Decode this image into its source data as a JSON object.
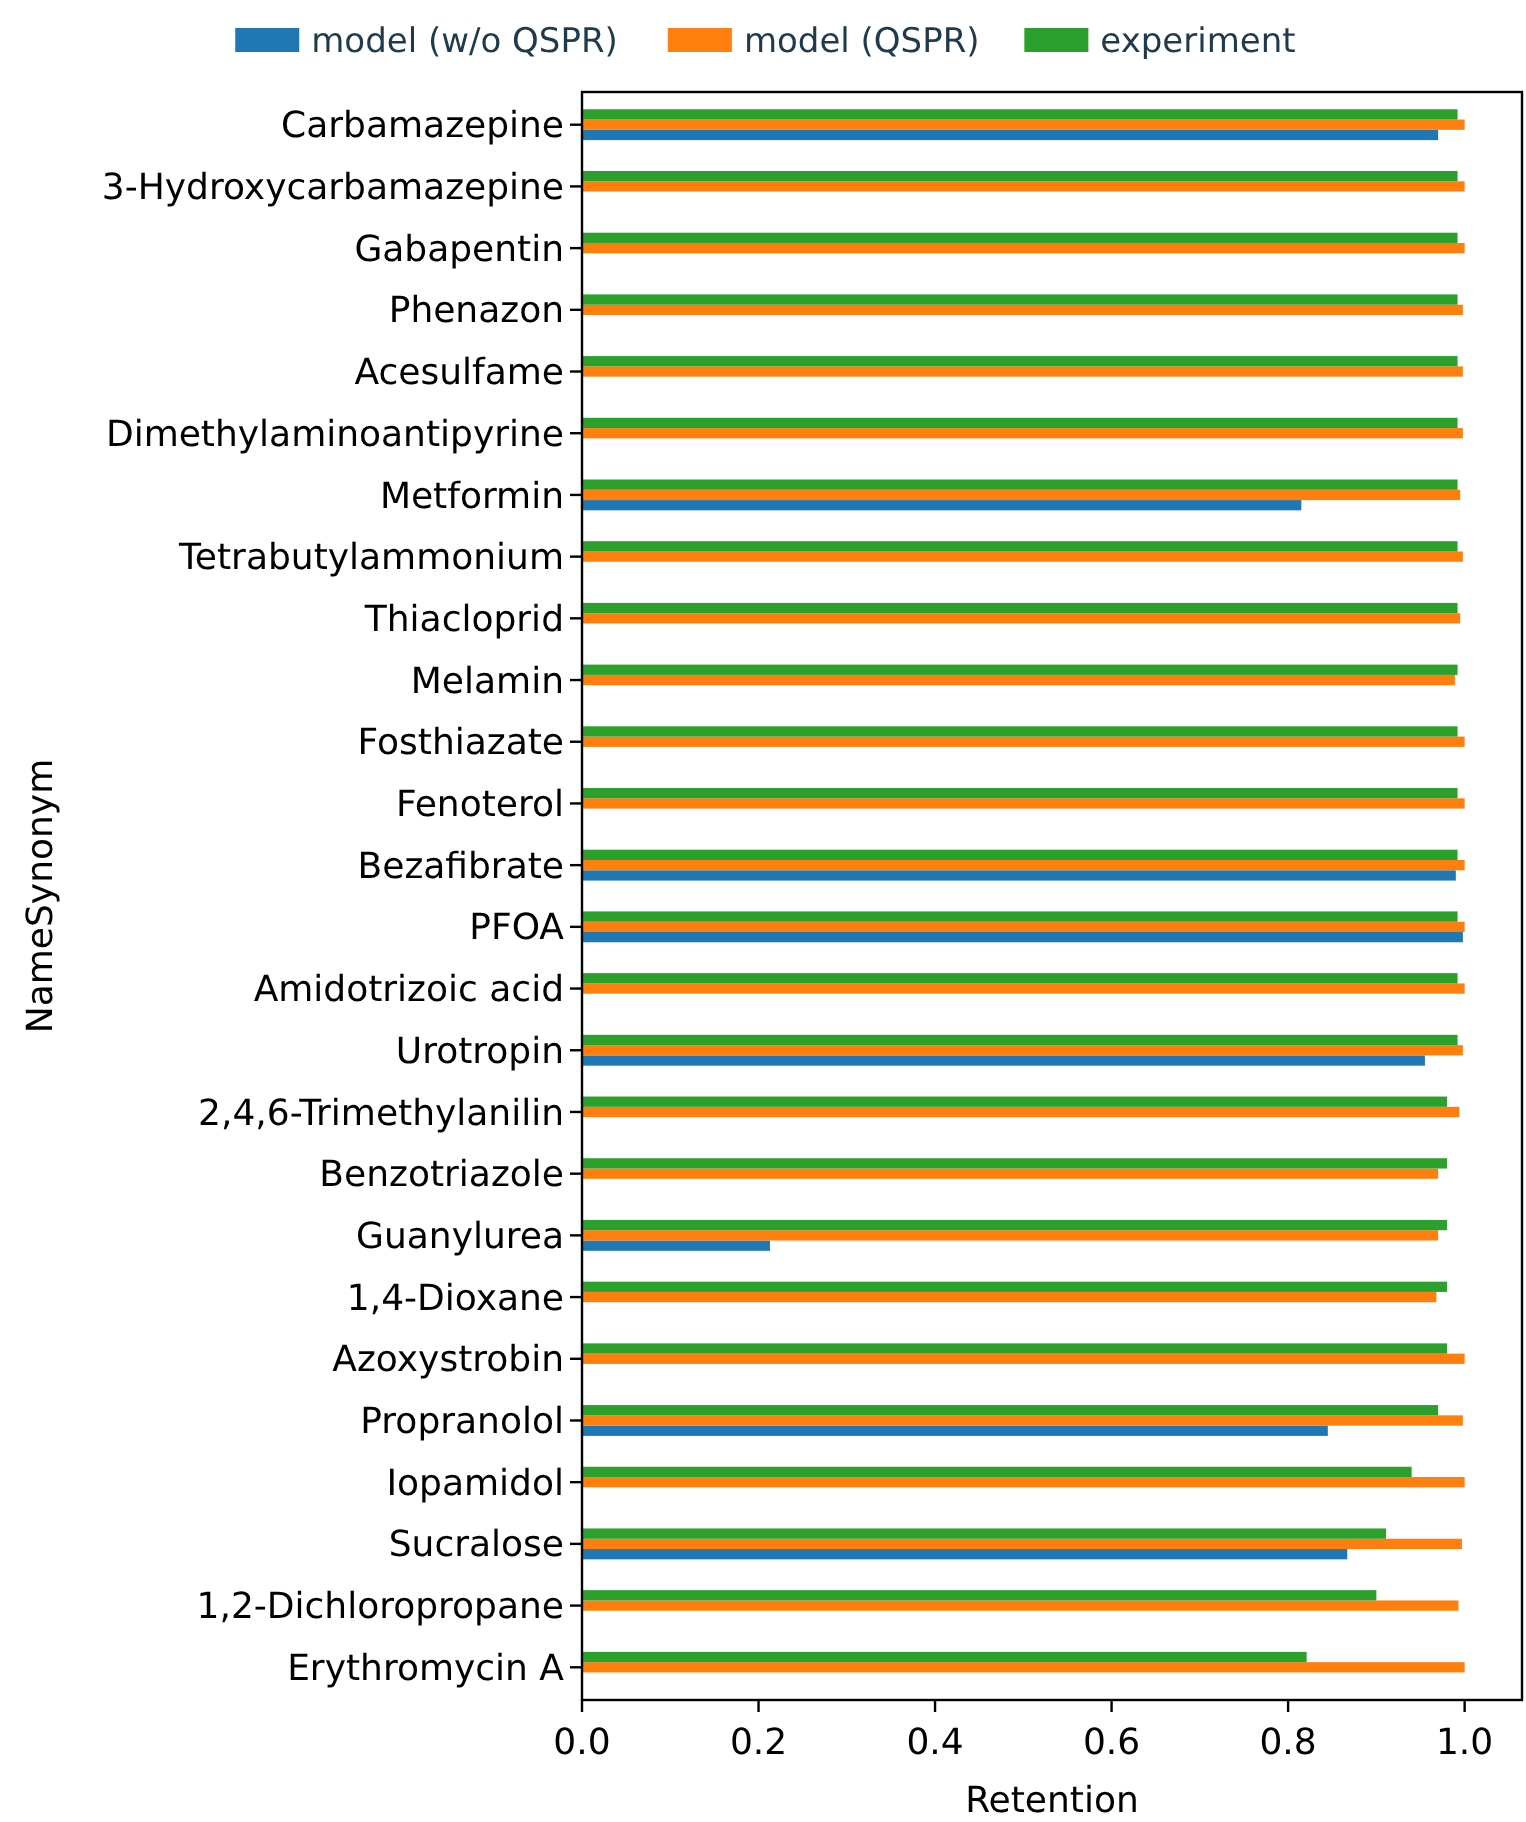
{
  "chart_data": {
    "type": "bar",
    "orientation": "horizontal",
    "xlabel": "Retention",
    "ylabel": "NameSynonym",
    "categories": [
      "Carbamazepine",
      "3-Hydroxycarbamazepine",
      "Gabapentin",
      "Phenazon",
      "Acesulfame",
      "Dimethylaminoantipyrine",
      "Metformin",
      "Tetrabutylammonium",
      "Thiacloprid",
      "Melamin",
      "Fosthiazate",
      "Fenoterol",
      "Bezafibrate",
      "PFOA",
      "Amidotrizoic acid",
      "Urotropin",
      "2,4,6-Trimethylanilin",
      "Benzotriazole",
      "Guanylurea",
      "1,4-Dioxane",
      "Azoxystrobin",
      "Propranolol",
      "Iopamidol",
      "Sucralose",
      "1,2-Dichloropropane",
      "Erythromycin A"
    ],
    "series": [
      {
        "name": "model (w/o QSPR)",
        "color": "#1f77b4",
        "values": [
          0.97,
          null,
          null,
          null,
          null,
          null,
          0.815,
          null,
          null,
          null,
          null,
          null,
          0.99,
          0.998,
          null,
          0.955,
          null,
          null,
          0.213,
          null,
          null,
          0.845,
          null,
          0.867,
          null,
          null
        ]
      },
      {
        "name": "model (QSPR)",
        "color": "#ff7f0e",
        "values": [
          1.0,
          1.0,
          1.0,
          0.998,
          0.998,
          0.998,
          0.995,
          0.998,
          0.995,
          0.989,
          1.0,
          1.0,
          1.0,
          1.0,
          1.0,
          0.998,
          0.994,
          0.97,
          0.97,
          0.968,
          1.0,
          0.998,
          1.0,
          0.997,
          0.993,
          1.0
        ]
      },
      {
        "name": "experiment",
        "color": "#2ca02c",
        "values": [
          0.992,
          0.992,
          0.992,
          0.992,
          0.992,
          0.992,
          0.992,
          0.992,
          0.992,
          0.992,
          0.992,
          0.992,
          0.992,
          0.992,
          0.992,
          0.992,
          0.98,
          0.98,
          0.98,
          0.98,
          0.98,
          0.97,
          0.94,
          0.911,
          0.9,
          0.821
        ]
      }
    ],
    "xlim": [
      0,
      1.065
    ],
    "xticks": [
      {
        "value": 0,
        "label": "0.0"
      },
      0.2,
      0.4,
      0.6,
      0.8,
      {
        "value": 1,
        "label": "1.0"
      }
    ],
    "legend": "top"
  }
}
